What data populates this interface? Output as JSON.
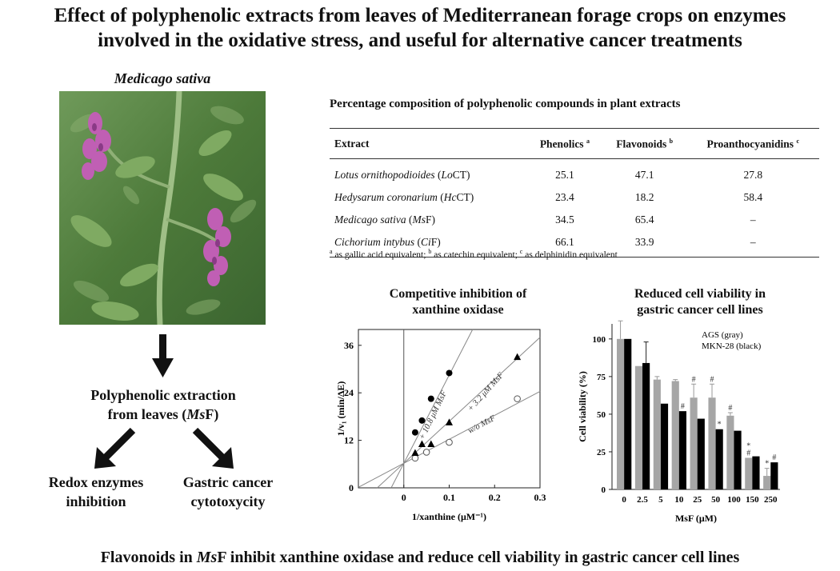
{
  "title_line1": "Effect of polyphenolic extracts from leaves of Mediterranean forage crops on enzymes",
  "title_line2": "involved in the oxidative stress, and useful for alternative cancer treatments",
  "plant_caption": "Medicago sativa",
  "flow": {
    "extraction_line1": "Polyphenolic extraction",
    "extraction_line2_pre": "from leaves (",
    "extraction_abbr": "Ms",
    "extraction_line2_post": "F)",
    "left_line1": "Redox enzymes",
    "left_line2": "inhibition",
    "right_line1": "Gastric cancer",
    "right_line2": "cytotoxycity"
  },
  "table": {
    "title": "Percentage composition of polyphenolic compounds in plant extracts",
    "headers": [
      "Extract",
      "Phenolics",
      "Flavonoids",
      "Proanthocyanidins"
    ],
    "header_sups": [
      "",
      "a",
      "b",
      "c"
    ],
    "rows": [
      {
        "species": "Lotus ornithopodioides",
        "code_open": " (",
        "code_italic": "Lo",
        "code_rest": "CT)",
        "values": [
          "25.1",
          "47.1",
          "27.8"
        ]
      },
      {
        "species": "Hedysarum coronarium",
        "code_open": " (",
        "code_italic": "Hc",
        "code_rest": "CT)",
        "values": [
          "23.4",
          "18.2",
          "58.4"
        ]
      },
      {
        "species": "Medicago sativa",
        "code_open": " (",
        "code_italic": "Ms",
        "code_rest": "F)",
        "values": [
          "34.5",
          "65.4",
          "–"
        ]
      },
      {
        "species": "Cichorium intybus",
        "code_open": " (",
        "code_italic": "Ci",
        "code_rest": "F)",
        "values": [
          "66.1",
          "33.9",
          "–"
        ]
      }
    ],
    "footnote_a": "as gallic acid equivalent;",
    "footnote_b": "as catechin equivalent;",
    "footnote_c": "as delphinidin equivalent"
  },
  "chart_data": [
    {
      "type": "scatter",
      "title": "Competitive inhibition of xanthine oxidase",
      "title_line1": "Competitive inhibition of",
      "title_line2": "xanthine oxidase",
      "xlabel": "1/xanthine (μM⁻¹)",
      "ylabel": "1/v₁ (min/ΔE)",
      "xlim": [
        -0.1,
        0.3
      ],
      "ylim": [
        0,
        40
      ],
      "xticks": [
        "0",
        "0.1",
        "0.2",
        "0.3"
      ],
      "yticks": [
        "0",
        "12",
        "24",
        "36"
      ],
      "series": [
        {
          "name": "w/o MsF",
          "marker": "open-circle",
          "x": [
            0.025,
            0.05,
            0.1,
            0.25
          ],
          "y": [
            7.5,
            9.0,
            11.5,
            22.5
          ],
          "line": {
            "slope": 60.5,
            "intercept": 6.2
          }
        },
        {
          "name": "+ 3.2 μM MsF",
          "marker": "triangle",
          "x": [
            0.025,
            0.04,
            0.06,
            0.1,
            0.25
          ],
          "y": [
            8.8,
            11.0,
            11.0,
            16.5,
            33.0
          ],
          "line": {
            "slope": 106.0,
            "intercept": 6.2
          }
        },
        {
          "name": "+ 10.8 μM MsF",
          "marker": "filled-circle",
          "x": [
            0.025,
            0.04,
            0.06,
            0.1
          ],
          "y": [
            14.0,
            17.0,
            22.5,
            29.0
          ],
          "line": {
            "slope": 223.0,
            "intercept": 6.2
          }
        }
      ]
    },
    {
      "type": "bar",
      "title": "Reduced cell viability in gastric cancer cell lines",
      "title_line1": "Reduced cell viability in",
      "title_line2": "gastric cancer cell lines",
      "xlabel": "MsF (μM)",
      "ylabel": "Cell viability (%)",
      "ylim": [
        0,
        110
      ],
      "yticks": [
        "0",
        "25",
        "50",
        "75",
        "100"
      ],
      "categories": [
        "0",
        "2.5",
        "5",
        "10",
        "25",
        "50",
        "100",
        "150",
        "250"
      ],
      "legend": [
        "AGS (gray)",
        "MKN-28 (black)"
      ],
      "series": [
        {
          "name": "AGS (gray)",
          "color": "#a6a6a6",
          "values": [
            100,
            82,
            73,
            72,
            61,
            61,
            49,
            21,
            9
          ],
          "errors": [
            12,
            0,
            2,
            1,
            9,
            9,
            2,
            0,
            5
          ]
        },
        {
          "name": "MKN-28 (black)",
          "color": "#000000",
          "values": [
            100,
            84,
            57,
            52,
            47,
            40,
            39,
            22,
            18
          ],
          "errors": [
            0,
            14,
            0,
            0,
            0,
            0,
            0,
            0,
            0
          ]
        }
      ],
      "annotations": [
        {
          "category": "10",
          "series": "MKN-28 (black)",
          "text": "#"
        },
        {
          "category": "25",
          "series": "AGS (gray)",
          "text": "#"
        },
        {
          "category": "50",
          "series": "AGS (gray)",
          "text": "#"
        },
        {
          "category": "50",
          "series": "MKN-28 (black)",
          "text": "*"
        },
        {
          "category": "100",
          "series": "AGS (gray)",
          "text": "#"
        },
        {
          "category": "150",
          "series": "AGS (gray)",
          "text": "#"
        },
        {
          "category": "150",
          "series": "AGS (gray)",
          "text": "*"
        },
        {
          "category": "250",
          "series": "AGS (gray)",
          "text": "*"
        },
        {
          "category": "250",
          "series": "MKN-28 (black)",
          "text": "#"
        }
      ]
    }
  ],
  "bottom_pre": "Flavonoids in ",
  "bottom_abbr": "Ms",
  "bottom_post": "F inhibit xanthine oxidase and reduce cell viability in gastric cancer cell lines",
  "colors": {
    "arrow": "#111111",
    "leaf": "#5f8a43",
    "flower": "#b150a8"
  }
}
